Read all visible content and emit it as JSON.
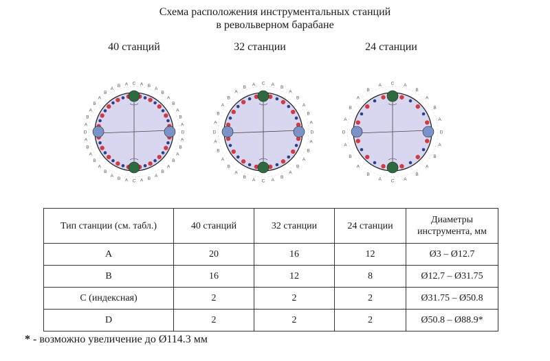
{
  "title": {
    "line1": "Схема расположения инструментальных станций",
    "line2": "в револьверном барабане"
  },
  "diagrams": [
    {
      "label": "40 станций",
      "stations_a": 20,
      "stations_b": 16,
      "stations_c": 2,
      "stations_d": 2
    },
    {
      "label": "32 станции",
      "stations_a": 16,
      "stations_b": 12,
      "stations_c": 2,
      "stations_d": 2
    },
    {
      "label": "24 станции",
      "stations_a": 12,
      "stations_b": 8,
      "stations_c": 2,
      "stations_d": 2
    }
  ],
  "colors": {
    "drum_fill": "#d9d7ef",
    "station_a": "#cf3a45",
    "station_b": "#2b3f8f",
    "station_c": "#2d6a40",
    "station_d": "#7b93c9",
    "outline": "#222222"
  },
  "ring_letters": {
    "a": "A",
    "b": "B",
    "c": "C",
    "d": "D"
  },
  "table": {
    "headers": [
      "Тип станции (см. табл.)",
      "40 станций",
      "32 станции",
      "24 станции",
      "Диаметры инструмента, мм"
    ],
    "rows": [
      [
        "A",
        "20",
        "16",
        "12",
        "Ø3 – Ø12.7"
      ],
      [
        "B",
        "16",
        "12",
        "8",
        "Ø12.7 – Ø31.75"
      ],
      [
        "C (индексная)",
        "2",
        "2",
        "2",
        "Ø31.75 – Ø50.8"
      ],
      [
        "D",
        "2",
        "2",
        "2",
        "Ø50.8 – Ø88.9*"
      ]
    ]
  },
  "footnote": {
    "star": "*",
    "text": " - возможно увеличение до Ø114.3 мм"
  }
}
